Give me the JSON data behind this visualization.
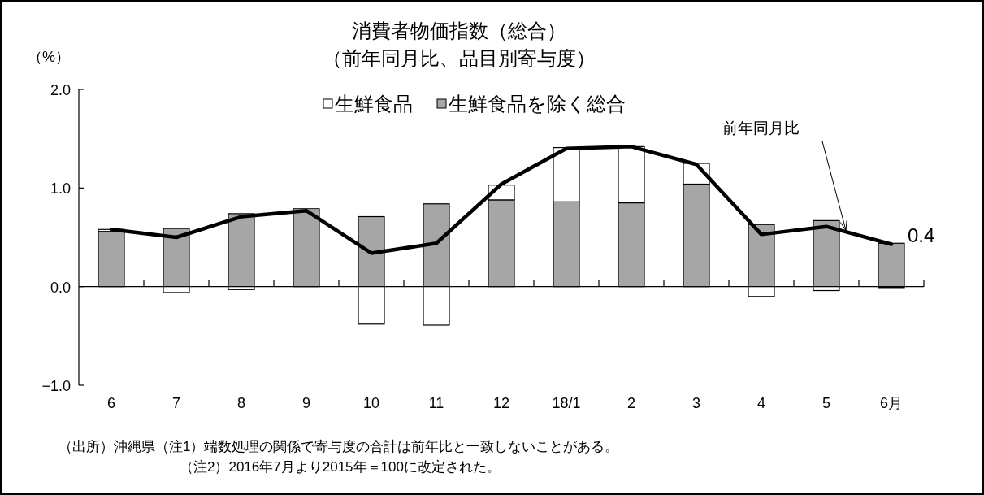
{
  "chart_data": {
    "type": "bar",
    "title": "消費者物価指数（総合）",
    "subtitle": "（前年同月比、品目別寄与度）",
    "ylabel": "（%）",
    "categories": [
      "6",
      "7",
      "8",
      "9",
      "10",
      "11",
      "12",
      "18/1",
      "2",
      "3",
      "4",
      "5",
      "6月"
    ],
    "stacked": true,
    "legend": "top",
    "ylim": [
      -1,
      2
    ],
    "yticks": [
      {
        "value": 2,
        "label": "2.0"
      },
      {
        "value": 1,
        "label": "1.0"
      },
      {
        "value": 0,
        "label": "0.0"
      },
      {
        "value": -1,
        "label": "−1.0"
      }
    ],
    "series": [
      {
        "name": "生鮮食品を除く総合",
        "color": "#a6a6a6",
        "values": [
          0.56,
          0.59,
          0.74,
          0.77,
          0.71,
          0.84,
          0.88,
          0.86,
          0.85,
          1.04,
          0.63,
          0.67,
          0.44
        ]
      },
      {
        "name": "生鮮食品",
        "color": "#ffffff",
        "values": [
          0.02,
          -0.06,
          -0.03,
          0.02,
          -0.38,
          -0.39,
          0.15,
          0.55,
          0.57,
          0.21,
          -0.1,
          -0.04,
          -0.01
        ]
      },
      {
        "type": "line",
        "color": "#000000",
        "values": [
          0.58,
          0.5,
          0.71,
          0.77,
          0.34,
          0.44,
          1.04,
          1.4,
          1.42,
          1.24,
          0.53,
          0.61,
          0.43
        ],
        "value_labels": [
          null,
          null,
          null,
          null,
          null,
          null,
          null,
          null,
          null,
          null,
          null,
          null,
          "0.4"
        ]
      }
    ],
    "annotations": [
      "（出所）沖縄県（注1）端数処理の関係で寄与度の合計は前年比と一致しないことがある。",
      "（注2）2016年7月より2015年＝100に改定された。",
      "前年同月比"
    ]
  }
}
